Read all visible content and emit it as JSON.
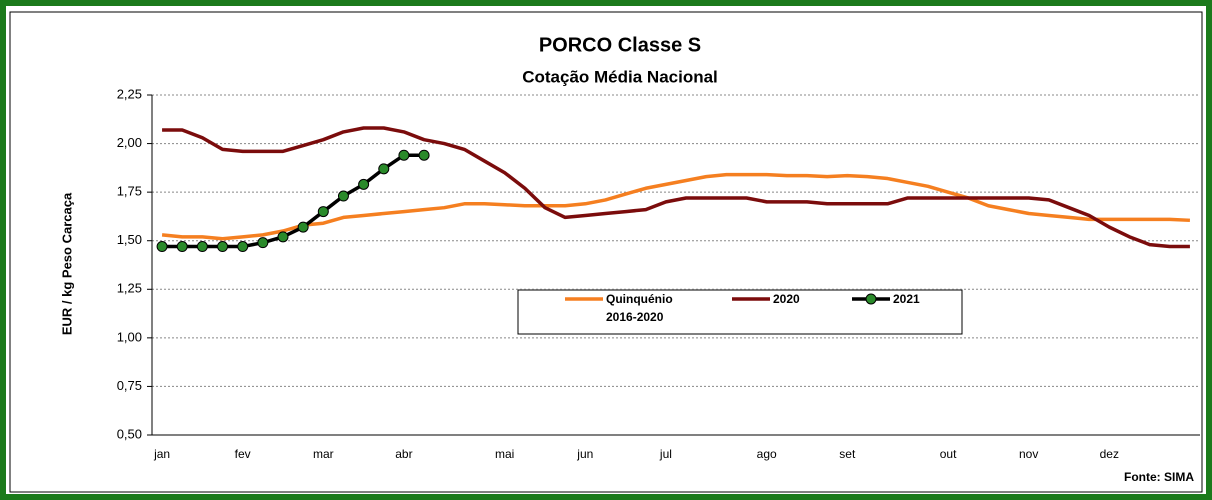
{
  "chart_data": {
    "type": "line",
    "title": "PORCO Classe S",
    "subtitle": "Cotação Média Nacional",
    "y_label": "EUR / kg Peso Carcaça",
    "source": "Fonte: SIMA",
    "categories": [
      "jan",
      null,
      null,
      null,
      "fev",
      null,
      null,
      null,
      "mar",
      null,
      null,
      null,
      "abr",
      null,
      null,
      null,
      null,
      "mai",
      null,
      null,
      null,
      "jun",
      null,
      null,
      null,
      "jul",
      null,
      null,
      null,
      null,
      "ago",
      null,
      null,
      null,
      "set",
      null,
      null,
      null,
      null,
      "out",
      null,
      null,
      null,
      "nov",
      null,
      null,
      null,
      "dez",
      null,
      null,
      null,
      null
    ],
    "ylim": [
      0.5,
      2.25
    ],
    "yticks": [
      {
        "value": 0.5,
        "label": "0,50"
      },
      {
        "value": 0.75,
        "label": "0,75"
      },
      {
        "value": 1.0,
        "label": "1,00"
      },
      {
        "value": 1.25,
        "label": "1,25"
      },
      {
        "value": 1.5,
        "label": "1,50"
      },
      {
        "value": 1.75,
        "label": "1,75"
      },
      {
        "value": 2.0,
        "label": "2,00"
      },
      {
        "value": 2.25,
        "label": "2,25"
      }
    ],
    "grid": true,
    "series": [
      {
        "name": "Quinquénio 2016-2020",
        "color": "#f57f20",
        "values": [
          1.53,
          1.52,
          1.52,
          1.51,
          1.52,
          1.53,
          1.55,
          1.58,
          1.59,
          1.62,
          1.63,
          1.64,
          1.65,
          1.66,
          1.67,
          1.69,
          1.69,
          1.685,
          1.68,
          1.68,
          1.68,
          1.69,
          1.71,
          1.74,
          1.77,
          1.79,
          1.81,
          1.83,
          1.84,
          1.84,
          1.84,
          1.835,
          1.835,
          1.83,
          1.835,
          1.83,
          1.82,
          1.8,
          1.78,
          1.75,
          1.72,
          1.68,
          1.66,
          1.64,
          1.63,
          1.62,
          1.61,
          1.61,
          1.61,
          1.61,
          1.61,
          1.605
        ]
      },
      {
        "name": "2020",
        "color": "#7b0c0c",
        "values": [
          2.07,
          2.07,
          2.03,
          1.97,
          1.96,
          1.96,
          1.96,
          1.99,
          2.02,
          2.06,
          2.08,
          2.08,
          2.06,
          2.02,
          2.0,
          1.97,
          1.91,
          1.85,
          1.77,
          1.67,
          1.62,
          1.63,
          1.64,
          1.65,
          1.66,
          1.7,
          1.72,
          1.72,
          1.72,
          1.72,
          1.7,
          1.7,
          1.7,
          1.69,
          1.69,
          1.69,
          1.69,
          1.72,
          1.72,
          1.72,
          1.72,
          1.72,
          1.72,
          1.72,
          1.71,
          1.67,
          1.63,
          1.57,
          1.52,
          1.48,
          1.47,
          1.47
        ]
      },
      {
        "name": "2021",
        "color": "#000000",
        "marker": "circle",
        "marker_color": "#2a8a2a",
        "values": [
          1.47,
          1.47,
          1.47,
          1.47,
          1.47,
          1.49,
          1.52,
          1.57,
          1.65,
          1.73,
          1.79,
          1.87,
          1.94,
          1.94,
          null,
          null,
          null,
          null,
          null,
          null,
          null,
          null,
          null,
          null,
          null,
          null,
          null,
          null,
          null,
          null,
          null,
          null,
          null,
          null,
          null,
          null,
          null,
          null,
          null,
          null,
          null,
          null,
          null,
          null,
          null,
          null,
          null,
          null,
          null,
          null,
          null,
          null
        ]
      }
    ]
  }
}
